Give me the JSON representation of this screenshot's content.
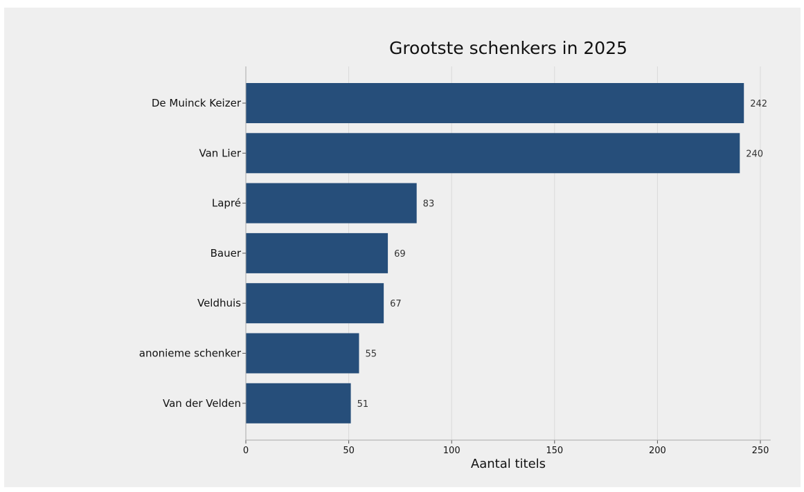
{
  "chart_data": {
    "type": "bar",
    "orientation": "horizontal",
    "title": "Grootste schenkers in 2025",
    "xlabel": "Aantal titels",
    "ylabel": "",
    "categories": [
      "De Muinck Keizer",
      "Van Lier",
      "Lapré",
      "Bauer",
      "Veldhuis",
      "anonieme schenker",
      "Van der Velden"
    ],
    "values": [
      242,
      240,
      83,
      69,
      67,
      55,
      51
    ],
    "data_labels": [
      "242",
      "240",
      "83",
      "69",
      "67",
      "55",
      "51"
    ],
    "xlim": [
      0,
      255
    ],
    "xticks": [
      0,
      50,
      100,
      150,
      200,
      250
    ],
    "xtick_labels": [
      "0",
      "50",
      "100",
      "150",
      "200",
      "250"
    ],
    "grid": "vertical",
    "legend": "none",
    "bar_color": "#264e7a",
    "background_color": "#efefef",
    "grid_color": "#d9d9d9"
  }
}
